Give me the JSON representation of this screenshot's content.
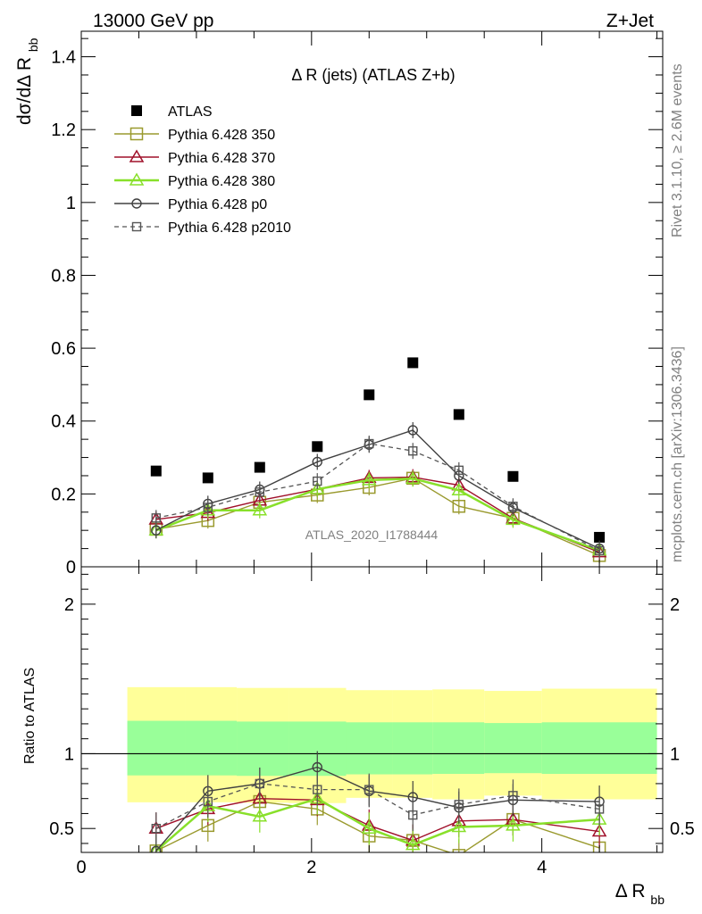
{
  "header": {
    "left": "13000 GeV pp",
    "right": "Z+Jet"
  },
  "side_labels": {
    "rivet": "Rivet 3.1.10, ≥ 2.6M events",
    "mcplots": "mcplots.cern.ch [arXiv:1306.3436]"
  },
  "chart_data": [
    {
      "panel": "main",
      "type": "line",
      "title": "Δ R (jets) (ATLAS Z+b)",
      "ylabel": "dσ/dΔ R_bb",
      "xlabel": "Δ R_bb",
      "watermark": "ATLAS_2020_I1788444",
      "xlim": [
        0,
        5.05
      ],
      "ylim": [
        0,
        1.47
      ],
      "y_ticks": [
        0,
        0.2,
        0.4,
        0.6,
        0.8,
        1,
        1.2,
        1.4
      ],
      "y_tick_labels": [
        "0",
        "0.2",
        "0.4",
        "0.6",
        "0.8",
        "1",
        "1.2",
        "1.4"
      ],
      "x": [
        0.65,
        1.1,
        1.55,
        2.05,
        2.5,
        2.88,
        3.28,
        3.75,
        4.5
      ],
      "legend_position": "top-left",
      "series": [
        {
          "name": "ATLAS",
          "color": "#000000",
          "marker": "filled-square",
          "line": "none",
          "values": [
            0.263,
            0.244,
            0.273,
            0.33,
            0.472,
            0.56,
            0.418,
            0.248,
            0.081
          ]
        },
        {
          "name": "Pythia 6.428 350",
          "color": "#9a9a2e",
          "marker": "open-square",
          "line": "solid",
          "values": [
            0.103,
            0.127,
            0.177,
            0.197,
            0.218,
            0.243,
            0.166,
            0.133,
            0.031
          ]
        },
        {
          "name": "Pythia 6.428 370",
          "color": "#a0102a",
          "marker": "open-triangle",
          "line": "solid",
          "values": [
            0.13,
            0.148,
            0.182,
            0.213,
            0.244,
            0.246,
            0.224,
            0.133,
            0.04
          ]
        },
        {
          "name": "Pythia 6.428 380",
          "color": "#88e02a",
          "marker": "open-triangle",
          "line": "solid-thick",
          "values": [
            0.1,
            0.155,
            0.155,
            0.213,
            0.238,
            0.242,
            0.21,
            0.129,
            0.045
          ]
        },
        {
          "name": "Pythia 6.428 p0",
          "color": "#404040",
          "marker": "open-circle",
          "line": "solid",
          "values": [
            0.1,
            0.173,
            0.212,
            0.288,
            0.335,
            0.375,
            0.25,
            0.162,
            0.05
          ]
        },
        {
          "name": "Pythia 6.428 p2010",
          "color": "#555555",
          "marker": "open-square-small",
          "line": "dashed",
          "values": [
            0.134,
            0.163,
            0.205,
            0.235,
            0.338,
            0.318,
            0.265,
            0.166,
            0.044
          ]
        }
      ]
    },
    {
      "panel": "ratio",
      "type": "line",
      "ylabel": "Ratio to ATLAS",
      "xlabel": "Δ R_bb",
      "xlim": [
        0,
        5.05
      ],
      "ylim": [
        0.34,
        2.25
      ],
      "y_ticks": [
        0.5,
        1,
        2
      ],
      "y_tick_labels": [
        "0.5",
        "1",
        "2"
      ],
      "x_ticks": [
        0,
        2,
        4
      ],
      "x_tick_labels": [
        "0",
        "2",
        "4"
      ],
      "reference_line": 1,
      "bins": [
        [
          0.4,
          0.9
        ],
        [
          0.9,
          1.35
        ],
        [
          1.35,
          1.8
        ],
        [
          1.8,
          2.3
        ],
        [
          2.3,
          2.7
        ],
        [
          2.7,
          3.05
        ],
        [
          3.05,
          3.5
        ],
        [
          3.5,
          4.0
        ],
        [
          4.0,
          5.0
        ]
      ],
      "band_outer": {
        "color": "#ffff99",
        "low": [
          0.675,
          0.675,
          0.672,
          0.67,
          0.705,
          0.705,
          0.695,
          0.72,
          0.695
        ],
        "high": [
          1.445,
          1.445,
          1.44,
          1.44,
          1.425,
          1.425,
          1.43,
          1.42,
          1.435
        ]
      },
      "band_inner": {
        "color": "#99ff99",
        "low": [
          0.855,
          0.855,
          0.852,
          0.852,
          0.862,
          0.862,
          0.865,
          0.87,
          0.865
        ],
        "high": [
          1.22,
          1.22,
          1.215,
          1.215,
          1.21,
          1.21,
          1.21,
          1.205,
          1.21
        ]
      },
      "x": [
        0.65,
        1.1,
        1.55,
        2.05,
        2.5,
        2.88,
        3.28,
        3.75,
        4.5
      ],
      "series": [
        {
          "name": "Pythia 6.428 350",
          "color": "#9a9a2e",
          "values": [
            0.35,
            0.52,
            0.68,
            0.63,
            0.45,
            0.42,
            0.32,
            0.56,
            0.37
          ]
        },
        {
          "name": "Pythia 6.428 370",
          "color": "#a0102a",
          "values": [
            0.5,
            0.63,
            0.7,
            0.69,
            0.52,
            0.42,
            0.55,
            0.56,
            0.48
          ]
        },
        {
          "name": "Pythia 6.428 380",
          "color": "#88e02a",
          "values": [
            0.35,
            0.65,
            0.58,
            0.7,
            0.5,
            0.39,
            0.51,
            0.52,
            0.56
          ]
        },
        {
          "name": "Pythia 6.428 p0",
          "color": "#404040",
          "values": [
            0.35,
            0.75,
            0.8,
            0.91,
            0.75,
            0.71,
            0.64,
            0.69,
            0.68
          ]
        },
        {
          "name": "Pythia 6.428 p2010",
          "color": "#555555",
          "values": [
            0.5,
            0.68,
            0.8,
            0.76,
            0.76,
            0.59,
            0.66,
            0.72,
            0.63
          ]
        }
      ]
    }
  ]
}
